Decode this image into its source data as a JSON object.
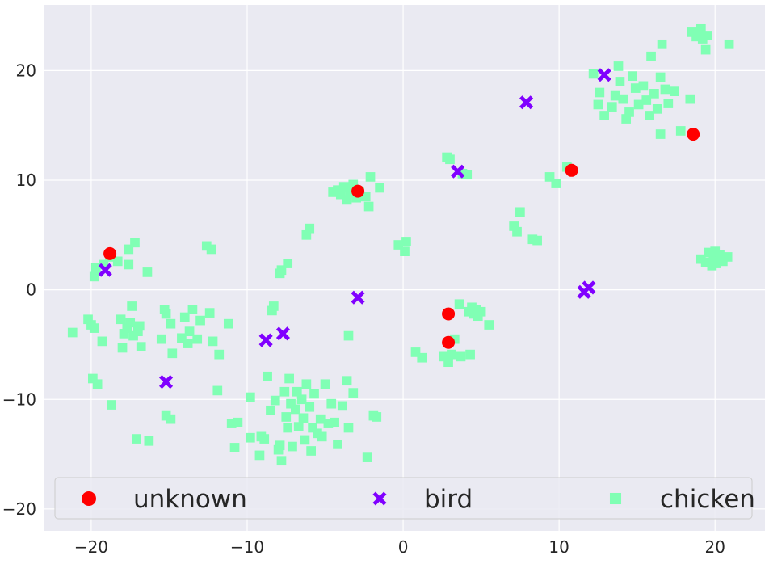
{
  "chart_data": {
    "type": "scatter",
    "title": "",
    "xlabel": "",
    "ylabel": "",
    "xlim": [
      -23,
      23.2
    ],
    "ylim": [
      -22,
      26
    ],
    "xticks": [
      -20,
      -10,
      0,
      10,
      20
    ],
    "yticks": [
      -20,
      -10,
      0,
      10,
      20
    ],
    "xtick_labels": [
      "−20",
      "−10",
      "0",
      "10",
      "20"
    ],
    "ytick_labels": [
      "−20",
      "−10",
      "0",
      "10",
      "20"
    ],
    "grid": true,
    "legend_position": "lower center",
    "colors": {
      "background": "#eaeaf2",
      "grid": "#ffffff",
      "unknown": "#ff0000",
      "bird": "#8000ff",
      "chicken": "#80ffb4"
    },
    "series": [
      {
        "name": "unknown",
        "marker": "circle",
        "color": "#ff0000",
        "points": [
          [
            -18.8,
            3.3
          ],
          [
            -2.9,
            9.0
          ],
          [
            2.9,
            -2.2
          ],
          [
            2.9,
            -4.8
          ],
          [
            10.8,
            10.9
          ],
          [
            18.6,
            14.2
          ]
        ]
      },
      {
        "name": "bird",
        "marker": "x",
        "color": "#8000ff",
        "points": [
          [
            -19.1,
            1.8
          ],
          [
            -15.2,
            -8.4
          ],
          [
            -8.8,
            -4.6
          ],
          [
            -7.7,
            -4.0
          ],
          [
            -2.9,
            -0.7
          ],
          [
            3.5,
            10.8
          ],
          [
            7.9,
            17.1
          ],
          [
            11.6,
            -0.2
          ],
          [
            11.9,
            0.2
          ],
          [
            12.9,
            19.6
          ]
        ]
      },
      {
        "name": "chicken",
        "marker": "square",
        "color": "#80ffb4",
        "points": [
          [
            -21.2,
            -3.9
          ],
          [
            -20.2,
            -2.7
          ],
          [
            -20.0,
            -3.2
          ],
          [
            -19.8,
            -3.5
          ],
          [
            -19.6,
            -8.6
          ],
          [
            -19.9,
            -8.1
          ],
          [
            -19.3,
            -4.7
          ],
          [
            -19.2,
            2.3
          ],
          [
            -19.7,
            2.0
          ],
          [
            -19.8,
            1.2
          ],
          [
            -18.8,
            3.0
          ],
          [
            -18.3,
            2.6
          ],
          [
            -18.0,
            -5.3
          ],
          [
            -17.9,
            -4.0
          ],
          [
            -17.7,
            -3.5
          ],
          [
            -17.5,
            -3.0
          ],
          [
            -17.4,
            -1.5
          ],
          [
            -17.3,
            -4.2
          ],
          [
            -17.0,
            -3.8
          ],
          [
            -16.9,
            -3.3
          ],
          [
            -16.8,
            -5.2
          ],
          [
            -17.6,
            2.3
          ],
          [
            -17.2,
            4.3
          ],
          [
            -17.6,
            3.7
          ],
          [
            -18.1,
            -2.7
          ],
          [
            -17.1,
            -13.6
          ],
          [
            -16.3,
            -13.8
          ],
          [
            -16.4,
            1.6
          ],
          [
            -18.7,
            -10.5
          ],
          [
            -15.5,
            -4.5
          ],
          [
            -15.3,
            -1.8
          ],
          [
            -15.2,
            -2.2
          ],
          [
            -14.9,
            -3.1
          ],
          [
            -14.8,
            -5.8
          ],
          [
            -14.9,
            -11.8
          ],
          [
            -15.2,
            -11.5
          ],
          [
            -14.2,
            -4.4
          ],
          [
            -14.0,
            -2.5
          ],
          [
            -13.8,
            -4.9
          ],
          [
            -13.7,
            -3.8
          ],
          [
            -13.5,
            -1.8
          ],
          [
            -13.2,
            -4.5
          ],
          [
            -13.0,
            -2.8
          ],
          [
            -12.6,
            4.0
          ],
          [
            -12.4,
            -2.1
          ],
          [
            -12.2,
            -4.7
          ],
          [
            -12.3,
            3.7
          ],
          [
            -11.9,
            -9.2
          ],
          [
            -11.8,
            -5.9
          ],
          [
            -11.2,
            -3.1
          ],
          [
            -11.0,
            -12.2
          ],
          [
            -10.8,
            -14.4
          ],
          [
            -10.6,
            -12.1
          ],
          [
            -9.8,
            -9.8
          ],
          [
            -9.8,
            -13.5
          ],
          [
            -9.2,
            -15.1
          ],
          [
            -9.1,
            -13.4
          ],
          [
            -8.9,
            -13.6
          ],
          [
            -8.7,
            -7.9
          ],
          [
            -8.5,
            -11.0
          ],
          [
            -8.4,
            -1.9
          ],
          [
            -8.3,
            -1.5
          ],
          [
            -8.2,
            -10.1
          ],
          [
            -8.0,
            -14.6
          ],
          [
            -7.9,
            -14.2
          ],
          [
            -7.8,
            -15.6
          ],
          [
            -7.6,
            -9.3
          ],
          [
            -7.5,
            -11.6
          ],
          [
            -7.4,
            -12.6
          ],
          [
            -7.3,
            -8.1
          ],
          [
            -7.2,
            -10.4
          ],
          [
            -7.1,
            -14.3
          ],
          [
            -6.9,
            -10.9
          ],
          [
            -6.8,
            -9.3
          ],
          [
            -6.7,
            -12.5
          ],
          [
            -6.5,
            -10.0
          ],
          [
            -6.4,
            -11.7
          ],
          [
            -6.3,
            -13.7
          ],
          [
            -6.2,
            -8.6
          ],
          [
            -6.0,
            -10.7
          ],
          [
            -5.9,
            -14.7
          ],
          [
            -5.8,
            -12.6
          ],
          [
            -5.7,
            -9.5
          ],
          [
            -5.5,
            -13.1
          ],
          [
            -5.3,
            -11.8
          ],
          [
            -5.2,
            -13.4
          ],
          [
            -5.0,
            -8.6
          ],
          [
            -4.8,
            -12.2
          ],
          [
            -4.6,
            -10.4
          ],
          [
            -4.4,
            -12.1
          ],
          [
            -4.2,
            -14.1
          ],
          [
            -3.9,
            -10.6
          ],
          [
            -3.6,
            -8.3
          ],
          [
            -3.5,
            -12.6
          ],
          [
            -3.2,
            -9.4
          ],
          [
            -1.9,
            -11.5
          ],
          [
            -1.7,
            -11.6
          ],
          [
            -2.3,
            -15.3
          ],
          [
            -7.9,
            1.5
          ],
          [
            -7.8,
            1.8
          ],
          [
            -7.4,
            2.4
          ],
          [
            -6.2,
            5.0
          ],
          [
            -6.0,
            5.6
          ],
          [
            -4.5,
            8.9
          ],
          [
            -4.2,
            9.1
          ],
          [
            -4.0,
            8.7
          ],
          [
            -3.8,
            9.4
          ],
          [
            -3.6,
            8.2
          ],
          [
            -3.4,
            8.8
          ],
          [
            -3.2,
            9.6
          ],
          [
            -3.0,
            8.4
          ],
          [
            -2.8,
            8.9
          ],
          [
            -2.4,
            8.5
          ],
          [
            -2.2,
            7.6
          ],
          [
            -2.1,
            10.3
          ],
          [
            -1.5,
            9.3
          ],
          [
            -3.5,
            -4.2
          ],
          [
            -0.3,
            4.1
          ],
          [
            0.1,
            3.5
          ],
          [
            0.2,
            4.4
          ],
          [
            0.8,
            -5.7
          ],
          [
            1.2,
            -6.2
          ],
          [
            2.8,
            12.1
          ],
          [
            3.0,
            11.9
          ],
          [
            2.6,
            -6.1
          ],
          [
            2.9,
            -6.6
          ],
          [
            3.1,
            -5.9
          ],
          [
            3.3,
            -4.5
          ],
          [
            3.6,
            -1.3
          ],
          [
            3.7,
            -6.1
          ],
          [
            3.8,
            10.6
          ],
          [
            4.1,
            10.5
          ],
          [
            4.2,
            -2.0
          ],
          [
            4.4,
            -1.6
          ],
          [
            4.5,
            -2.2
          ],
          [
            4.7,
            -1.8
          ],
          [
            4.8,
            -2.4
          ],
          [
            5.0,
            -2.0
          ],
          [
            4.3,
            -5.9
          ],
          [
            5.5,
            -3.2
          ],
          [
            7.1,
            5.8
          ],
          [
            7.3,
            5.3
          ],
          [
            7.5,
            7.1
          ],
          [
            8.3,
            4.6
          ],
          [
            8.6,
            4.5
          ],
          [
            9.4,
            10.3
          ],
          [
            9.8,
            9.7
          ],
          [
            10.5,
            11.2
          ],
          [
            12.2,
            19.7
          ],
          [
            12.5,
            16.9
          ],
          [
            12.6,
            18.0
          ],
          [
            12.9,
            15.9
          ],
          [
            13.4,
            16.7
          ],
          [
            13.6,
            17.7
          ],
          [
            13.8,
            20.4
          ],
          [
            13.9,
            19.0
          ],
          [
            14.1,
            17.4
          ],
          [
            14.3,
            15.6
          ],
          [
            14.5,
            16.2
          ],
          [
            14.7,
            19.5
          ],
          [
            14.9,
            18.4
          ],
          [
            15.1,
            16.9
          ],
          [
            15.4,
            18.6
          ],
          [
            15.6,
            17.3
          ],
          [
            15.8,
            15.9
          ],
          [
            16.1,
            17.9
          ],
          [
            16.3,
            16.5
          ],
          [
            16.5,
            19.4
          ],
          [
            16.8,
            18.3
          ],
          [
            17.0,
            17.0
          ],
          [
            15.9,
            21.3
          ],
          [
            16.6,
            22.4
          ],
          [
            17.4,
            18.1
          ],
          [
            17.8,
            14.5
          ],
          [
            16.5,
            14.2
          ],
          [
            18.4,
            17.4
          ],
          [
            18.5,
            23.5
          ],
          [
            18.8,
            23.1
          ],
          [
            19.0,
            23.4
          ],
          [
            19.2,
            22.9
          ],
          [
            19.5,
            23.2
          ],
          [
            19.4,
            21.9
          ],
          [
            19.1,
            23.8
          ],
          [
            20.9,
            22.4
          ],
          [
            19.1,
            2.8
          ],
          [
            19.4,
            2.5
          ],
          [
            19.6,
            3.4
          ],
          [
            19.9,
            2.9
          ],
          [
            20.1,
            2.4
          ],
          [
            20.3,
            3.2
          ],
          [
            20.5,
            2.6
          ],
          [
            20.8,
            3.0
          ],
          [
            20.0,
            3.5
          ],
          [
            19.8,
            2.2
          ]
        ]
      }
    ]
  },
  "legend": {
    "items": [
      "unknown",
      "bird",
      "chicken"
    ]
  }
}
